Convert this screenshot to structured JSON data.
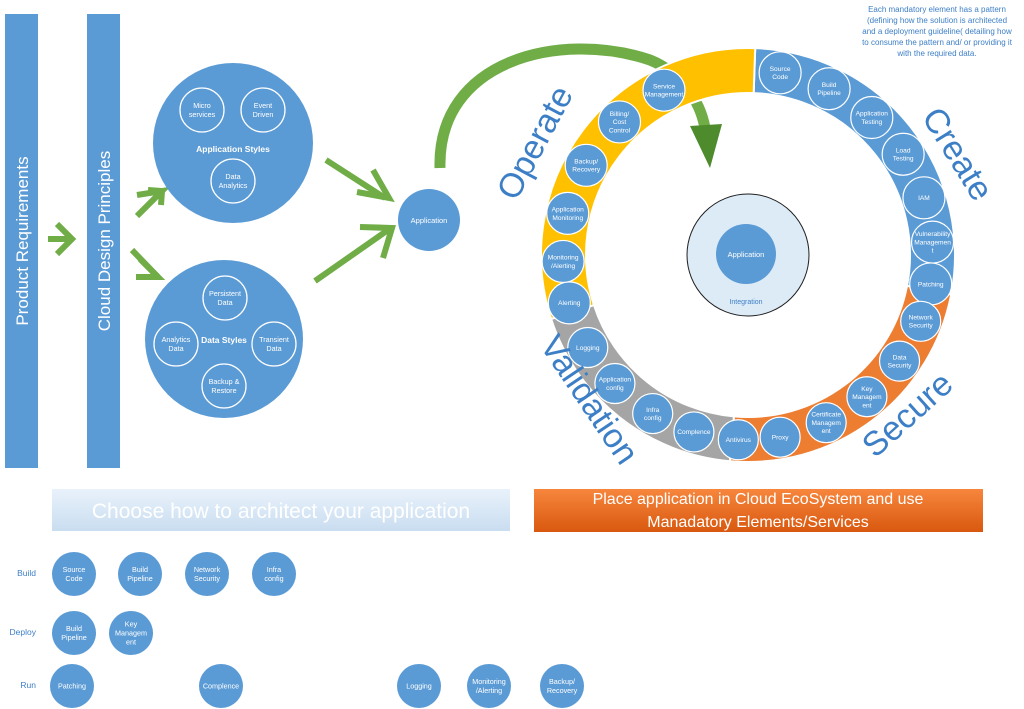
{
  "bars": {
    "product_requirements": "Product Requirements",
    "cloud_design_principles": "Cloud Design Principles"
  },
  "app_styles": {
    "title": "Application Styles",
    "items": [
      [
        "Micro",
        "services"
      ],
      [
        "Event",
        "Driven"
      ],
      [
        "Data",
        "Analytics"
      ]
    ]
  },
  "data_styles": {
    "title": "Data Styles",
    "items": [
      [
        "Persistent",
        "Data"
      ],
      [
        "Analytics",
        "Data"
      ],
      [
        "Transient",
        "Data"
      ],
      [
        "Backup &",
        "Restore"
      ]
    ]
  },
  "application_node": "Application",
  "center": {
    "application": "Application",
    "integration": "Integration"
  },
  "phases": {
    "operate": "Operate",
    "create": "Create",
    "validation": "Validation",
    "secure": "Secure"
  },
  "ring": {
    "operate": [
      [
        "Service",
        "Management"
      ],
      [
        "Billing/",
        "Cost",
        "Control"
      ],
      [
        "Backup/",
        "Recovery"
      ],
      [
        "Application",
        "Monitoring"
      ],
      [
        "Monitoring",
        "/Alerting"
      ],
      [
        "Alerting"
      ]
    ],
    "create": [
      [
        "Source",
        "Code"
      ],
      [
        "Build",
        "Pipeline"
      ],
      [
        "Application",
        "Testing"
      ],
      [
        "Load",
        "Testing"
      ],
      [
        "IAM"
      ],
      [
        "Vulnerability",
        "Managemen",
        "t"
      ],
      [
        "Patching"
      ]
    ],
    "secure": [
      [
        "Network",
        "Security"
      ],
      [
        "Data",
        "Security"
      ],
      [
        "Key",
        "Managem",
        "ent"
      ],
      [
        "Certificate",
        "Managem",
        "ent"
      ],
      [
        "Proxy"
      ],
      [
        "Antivirus"
      ]
    ],
    "validation": [
      [
        "Complence"
      ],
      [
        "Infra",
        "config"
      ],
      [
        "Application",
        "config"
      ],
      [
        "Logging"
      ]
    ]
  },
  "note": "Each mandatory element has a pattern (defining how the solution is architected and a deployment guideline( detailing how to consume the pattern and/ or providing it with the required data.",
  "banner_left": "Choose how to architect your application",
  "banner_right": [
    "Place application in Cloud EcoSystem and use",
    "Manadatory Elements/Services"
  ],
  "stages": {
    "build": {
      "label": "Build",
      "items": [
        [
          "Source",
          "Code"
        ],
        [
          "Build",
          "Pipeline"
        ],
        [
          "Network",
          "Security"
        ],
        [
          "Infra",
          "config"
        ]
      ]
    },
    "deploy": {
      "label": "Deploy",
      "items": [
        [
          "Build",
          "Pipeline"
        ],
        [
          "Key",
          "Managem",
          "ent"
        ]
      ]
    },
    "run": {
      "label": "Run",
      "items": [
        [
          "Patching"
        ],
        [
          "Complence"
        ],
        [
          "Logging"
        ],
        [
          "Monitoring",
          "/Alerting"
        ],
        [
          "Backup/",
          "Recovery"
        ]
      ]
    }
  },
  "colors": {
    "blue": "#5b9bd5",
    "yellow": "#ffc000",
    "orange": "#ed7d31",
    "gray": "#a5a5a5",
    "green": "#70ad47",
    "center_fill": "#ddebf7",
    "banner_left": "#deebf7",
    "banner_right": "#e86a1f"
  }
}
